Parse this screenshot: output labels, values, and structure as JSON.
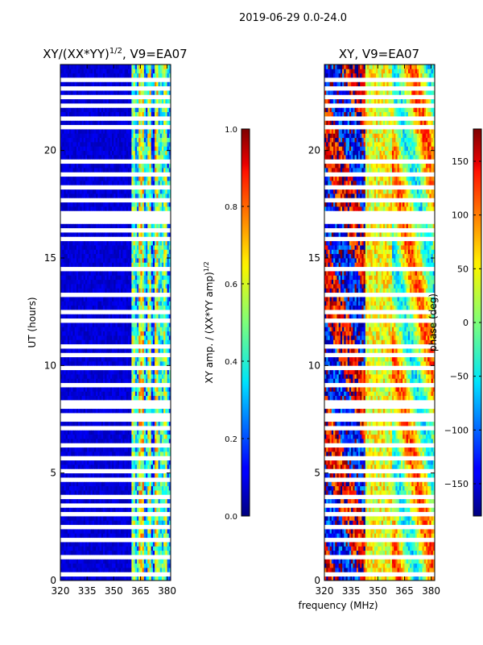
{
  "figure": {
    "suptitle": "2019-06-29 0.0-24.0",
    "xlabel": "frequency (MHz)"
  },
  "chart_data": [
    {
      "type": "heatmap",
      "title": "XY/(XX*YY)$^{1/2}$, V9=EA07",
      "title_main": "XY/(XX*YY)",
      "title_exp": "1/2",
      "title_tail": ", V9=EA07",
      "xlabel": "",
      "ylabel": "UT (hours)",
      "xlim": [
        320,
        382
      ],
      "ylim": [
        0,
        24
      ],
      "xticks": [
        320,
        335,
        350,
        365,
        380
      ],
      "yticks": [
        0,
        5,
        10,
        15,
        20
      ],
      "colorbar": {
        "label_main": "XY amp. / (XX*YY amp)",
        "label_exp": "1/2",
        "range": [
          0.0,
          1.0
        ],
        "ticks": [
          0.0,
          0.2,
          0.4,
          0.6,
          0.8,
          1.0
        ],
        "tick_labels": [
          "0.0",
          "0.2",
          "0.4",
          "0.6",
          "0.8",
          "1.0"
        ]
      },
      "description_values": {
        "band_320_360_MHz": 0.08,
        "band_360_382_MHz_typical": 0.45
      }
    },
    {
      "type": "heatmap",
      "title": "XY, V9=EA07",
      "xlabel": "",
      "ylabel": "",
      "xlim": [
        320,
        382
      ],
      "ylim": [
        0,
        24
      ],
      "xticks": [
        320,
        335,
        350,
        365,
        380
      ],
      "yticks": [
        0,
        5,
        10,
        15,
        20
      ],
      "colorbar": {
        "label": "phase (deg)",
        "range": [
          -180,
          180
        ],
        "ticks": [
          -150,
          -100,
          -50,
          0,
          50,
          100,
          150
        ],
        "tick_labels": [
          "−150",
          "−100",
          "−50",
          "0",
          "50",
          "100",
          "150"
        ]
      }
    }
  ],
  "flagged_rows_ut": [
    0.35,
    1.15,
    1.95,
    2.45,
    3.05,
    3.55,
    3.85,
    4.75,
    5.05,
    5.75,
    6.35,
    7.05,
    7.55,
    7.75,
    8.05,
    8.25,
    9.15,
    9.85,
    10.45,
    10.95,
    12.05,
    12.45,
    13.35,
    14.45,
    15.85,
    16.35,
    16.75,
    17.05,
    17.65,
    18.25,
    18.95,
    19.45,
    21.05,
    21.55,
    22.05,
    22.45,
    22.85,
    23.25
  ]
}
